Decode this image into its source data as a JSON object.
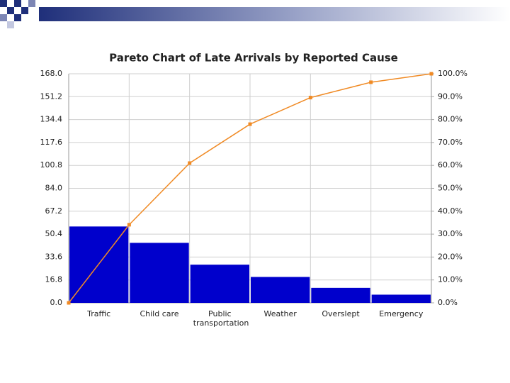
{
  "chart_data": {
    "type": "pareto",
    "title": "Pareto Chart of Late Arrivals by Reported Cause",
    "categories": [
      "Traffic",
      "Child care",
      "Public transportation",
      "Weather",
      "Overslept",
      "Emergency"
    ],
    "series": [
      {
        "type": "bar",
        "color": "#0000cc",
        "values": [
          56,
          44,
          28,
          19,
          11,
          6
        ]
      },
      {
        "type": "line",
        "axis": "y2",
        "color": "#f08a24",
        "values": [
          34.1,
          61.0,
          78.0,
          89.6,
          96.3,
          100.0
        ]
      }
    ],
    "ylim": [
      0,
      168
    ],
    "yticks": [
      {
        "value": 0,
        "label": "0.0"
      },
      16.8,
      33.6,
      50.4,
      67.2,
      {
        "value": 84,
        "label": "84.0"
      },
      100.8,
      117.6,
      134.4,
      151.2,
      {
        "value": 168,
        "label": "168.0"
      }
    ],
    "y2lim": [
      0,
      100
    ],
    "y2ticks": [
      {
        "value": 0,
        "label": "0.0%"
      },
      {
        "value": 10,
        "label": "10.0%"
      },
      {
        "value": 20,
        "label": "20.0%"
      },
      {
        "value": 30,
        "label": "30.0%"
      },
      {
        "value": 40,
        "label": "40.0%"
      },
      {
        "value": 50,
        "label": "50.0%"
      },
      {
        "value": 60,
        "label": "60.0%"
      },
      {
        "value": 70,
        "label": "70.0%"
      },
      {
        "value": 80,
        "label": "80.0%"
      },
      {
        "value": 90,
        "label": "90.0%"
      },
      {
        "value": 100,
        "label": "100.0%"
      }
    ],
    "grid": true
  }
}
